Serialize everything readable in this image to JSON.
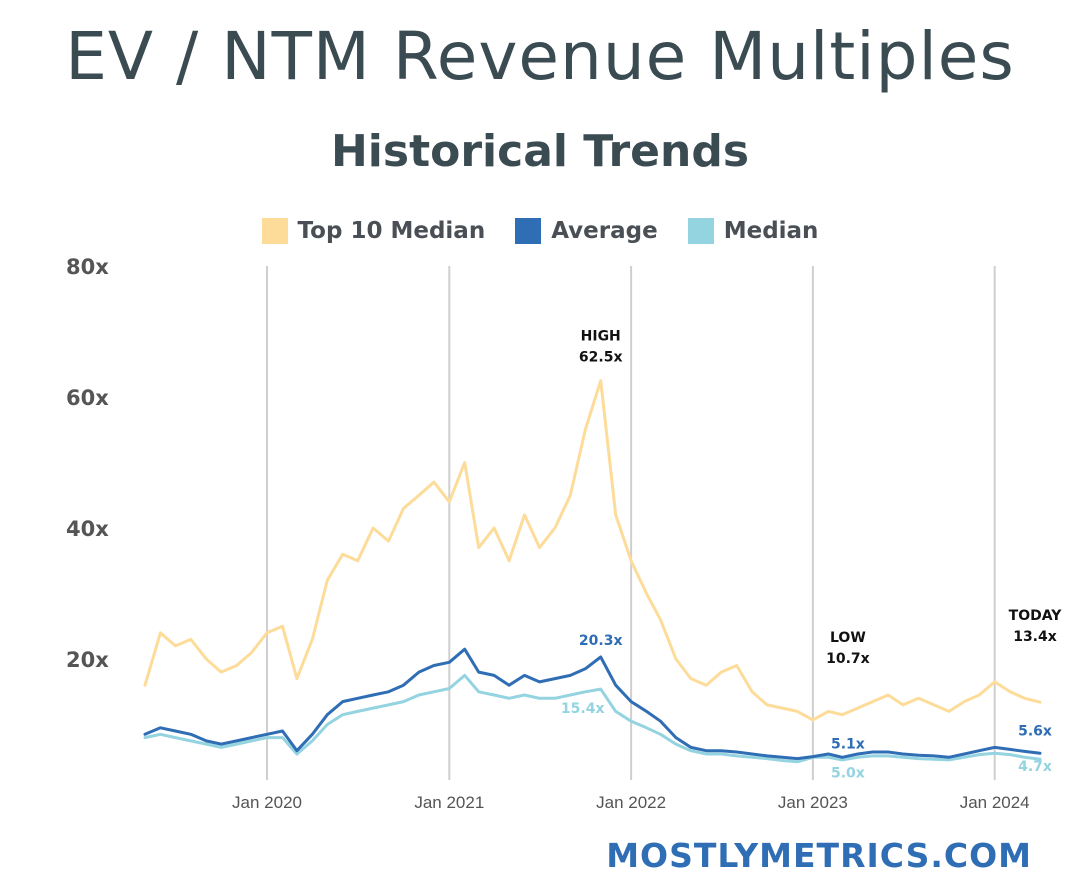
{
  "header": {
    "title": "EV / NTM Revenue Multiples",
    "subtitle": "Historical Trends"
  },
  "legend": [
    {
      "label": "Top 10 Median",
      "color": "#fddc9a"
    },
    {
      "label": "Average",
      "color": "#2f6db4"
    },
    {
      "label": "Median",
      "color": "#94d3e0"
    }
  ],
  "footer": {
    "brand": "MOSTLYMETRICS.COM"
  },
  "chart_data": {
    "type": "line",
    "x_range": [
      "2019-05-01",
      "2024-04-01"
    ],
    "ylim": [
      0,
      80
    ],
    "y_ticks": [
      20,
      40,
      60,
      80
    ],
    "y_tick_labels": [
      "20x",
      "40x",
      "60x",
      "80x"
    ],
    "x_ticks": [
      "2020-01-01",
      "2021-01-01",
      "2022-01-01",
      "2023-01-01",
      "2024-01-01"
    ],
    "x_tick_labels": [
      "Jan 2020",
      "Jan 2021",
      "Jan 2022",
      "Jan 2023",
      "Jan 2024"
    ],
    "grid": "vertical",
    "legend_position": "top",
    "series": [
      {
        "name": "Top 10 Median",
        "color": "#fddc9a",
        "points": [
          [
            "2019-05-01",
            16
          ],
          [
            "2019-06-01",
            24
          ],
          [
            "2019-07-01",
            22
          ],
          [
            "2019-08-01",
            23
          ],
          [
            "2019-09-01",
            20
          ],
          [
            "2019-10-01",
            18
          ],
          [
            "2019-11-01",
            19
          ],
          [
            "2019-12-01",
            21
          ],
          [
            "2020-01-01",
            24
          ],
          [
            "2020-02-01",
            25
          ],
          [
            "2020-03-01",
            17
          ],
          [
            "2020-04-01",
            23
          ],
          [
            "2020-05-01",
            32
          ],
          [
            "2020-06-01",
            36
          ],
          [
            "2020-07-01",
            35
          ],
          [
            "2020-08-01",
            40
          ],
          [
            "2020-09-01",
            38
          ],
          [
            "2020-10-01",
            43
          ],
          [
            "2020-11-01",
            45
          ],
          [
            "2020-12-01",
            47
          ],
          [
            "2021-01-01",
            44
          ],
          [
            "2021-02-01",
            50
          ],
          [
            "2021-03-01",
            37
          ],
          [
            "2021-04-01",
            40
          ],
          [
            "2021-05-01",
            35
          ],
          [
            "2021-06-01",
            42
          ],
          [
            "2021-07-01",
            37
          ],
          [
            "2021-08-01",
            40
          ],
          [
            "2021-09-01",
            45
          ],
          [
            "2021-10-01",
            55
          ],
          [
            "2021-11-01",
            62.5
          ],
          [
            "2021-12-01",
            42
          ],
          [
            "2022-01-01",
            35
          ],
          [
            "2022-02-01",
            30
          ],
          [
            "2022-03-01",
            26
          ],
          [
            "2022-04-01",
            20
          ],
          [
            "2022-05-01",
            17
          ],
          [
            "2022-06-01",
            16
          ],
          [
            "2022-07-01",
            18
          ],
          [
            "2022-08-01",
            19
          ],
          [
            "2022-09-01",
            15
          ],
          [
            "2022-10-01",
            13
          ],
          [
            "2022-11-01",
            12.5
          ],
          [
            "2022-12-01",
            12
          ],
          [
            "2023-01-01",
            10.7
          ],
          [
            "2023-02-01",
            12
          ],
          [
            "2023-03-01",
            11.5
          ],
          [
            "2023-04-01",
            12.5
          ],
          [
            "2023-05-01",
            13.5
          ],
          [
            "2023-06-01",
            14.5
          ],
          [
            "2023-07-01",
            13
          ],
          [
            "2023-08-01",
            14
          ],
          [
            "2023-09-01",
            13
          ],
          [
            "2023-10-01",
            12
          ],
          [
            "2023-11-01",
            13.5
          ],
          [
            "2023-12-01",
            14.5
          ],
          [
            "2024-01-01",
            16.5
          ],
          [
            "2024-02-01",
            15
          ],
          [
            "2024-03-01",
            14
          ],
          [
            "2024-04-01",
            13.4
          ]
        ]
      },
      {
        "name": "Average",
        "color": "#2f6db4",
        "points": [
          [
            "2019-05-01",
            8.5
          ],
          [
            "2019-06-01",
            9.5
          ],
          [
            "2019-07-01",
            9.0
          ],
          [
            "2019-08-01",
            8.5
          ],
          [
            "2019-09-01",
            7.5
          ],
          [
            "2019-10-01",
            7.0
          ],
          [
            "2019-11-01",
            7.5
          ],
          [
            "2019-12-01",
            8.0
          ],
          [
            "2020-01-01",
            8.5
          ],
          [
            "2020-02-01",
            9.0
          ],
          [
            "2020-03-01",
            6.0
          ],
          [
            "2020-04-01",
            8.5
          ],
          [
            "2020-05-01",
            11.5
          ],
          [
            "2020-06-01",
            13.5
          ],
          [
            "2020-07-01",
            14.0
          ],
          [
            "2020-08-01",
            14.5
          ],
          [
            "2020-09-01",
            15.0
          ],
          [
            "2020-10-01",
            16.0
          ],
          [
            "2020-11-01",
            18.0
          ],
          [
            "2020-12-01",
            19.0
          ],
          [
            "2021-01-01",
            19.5
          ],
          [
            "2021-02-01",
            21.5
          ],
          [
            "2021-03-01",
            18.0
          ],
          [
            "2021-04-01",
            17.5
          ],
          [
            "2021-05-01",
            16.0
          ],
          [
            "2021-06-01",
            17.5
          ],
          [
            "2021-07-01",
            16.5
          ],
          [
            "2021-08-01",
            17.0
          ],
          [
            "2021-09-01",
            17.5
          ],
          [
            "2021-10-01",
            18.5
          ],
          [
            "2021-11-01",
            20.3
          ],
          [
            "2021-12-01",
            16.0
          ],
          [
            "2022-01-01",
            13.5
          ],
          [
            "2022-02-01",
            12.0
          ],
          [
            "2022-03-01",
            10.5
          ],
          [
            "2022-04-01",
            8.0
          ],
          [
            "2022-05-01",
            6.5
          ],
          [
            "2022-06-01",
            6.0
          ],
          [
            "2022-07-01",
            6.0
          ],
          [
            "2022-08-01",
            5.8
          ],
          [
            "2022-09-01",
            5.5
          ],
          [
            "2022-10-01",
            5.2
          ],
          [
            "2022-11-01",
            5.0
          ],
          [
            "2022-12-01",
            4.8
          ],
          [
            "2023-01-01",
            5.1
          ],
          [
            "2023-02-01",
            5.5
          ],
          [
            "2023-03-01",
            5.0
          ],
          [
            "2023-04-01",
            5.5
          ],
          [
            "2023-05-01",
            5.8
          ],
          [
            "2023-06-01",
            5.8
          ],
          [
            "2023-07-01",
            5.5
          ],
          [
            "2023-08-01",
            5.3
          ],
          [
            "2023-09-01",
            5.2
          ],
          [
            "2023-10-01",
            5.0
          ],
          [
            "2023-11-01",
            5.5
          ],
          [
            "2023-12-01",
            6.0
          ],
          [
            "2024-01-01",
            6.5
          ],
          [
            "2024-02-01",
            6.2
          ],
          [
            "2024-03-01",
            5.9
          ],
          [
            "2024-04-01",
            5.6
          ]
        ]
      },
      {
        "name": "Median",
        "color": "#94d3e0",
        "points": [
          [
            "2019-05-01",
            8.0
          ],
          [
            "2019-06-01",
            8.5
          ],
          [
            "2019-07-01",
            8.0
          ],
          [
            "2019-08-01",
            7.5
          ],
          [
            "2019-09-01",
            7.0
          ],
          [
            "2019-10-01",
            6.5
          ],
          [
            "2019-11-01",
            7.0
          ],
          [
            "2019-12-01",
            7.5
          ],
          [
            "2020-01-01",
            8.0
          ],
          [
            "2020-02-01",
            8.0
          ],
          [
            "2020-03-01",
            5.5
          ],
          [
            "2020-04-01",
            7.5
          ],
          [
            "2020-05-01",
            10.0
          ],
          [
            "2020-06-01",
            11.5
          ],
          [
            "2020-07-01",
            12.0
          ],
          [
            "2020-08-01",
            12.5
          ],
          [
            "2020-09-01",
            13.0
          ],
          [
            "2020-10-01",
            13.5
          ],
          [
            "2020-11-01",
            14.5
          ],
          [
            "2020-12-01",
            15.0
          ],
          [
            "2021-01-01",
            15.5
          ],
          [
            "2021-02-01",
            17.5
          ],
          [
            "2021-03-01",
            15.0
          ],
          [
            "2021-04-01",
            14.5
          ],
          [
            "2021-05-01",
            14.0
          ],
          [
            "2021-06-01",
            14.5
          ],
          [
            "2021-07-01",
            14.0
          ],
          [
            "2021-08-01",
            14.0
          ],
          [
            "2021-09-01",
            14.5
          ],
          [
            "2021-10-01",
            15.0
          ],
          [
            "2021-11-01",
            15.4
          ],
          [
            "2021-12-01",
            12.0
          ],
          [
            "2022-01-01",
            10.5
          ],
          [
            "2022-02-01",
            9.5
          ],
          [
            "2022-03-01",
            8.5
          ],
          [
            "2022-04-01",
            7.0
          ],
          [
            "2022-05-01",
            6.0
          ],
          [
            "2022-06-01",
            5.5
          ],
          [
            "2022-07-01",
            5.5
          ],
          [
            "2022-08-01",
            5.2
          ],
          [
            "2022-09-01",
            5.0
          ],
          [
            "2022-10-01",
            4.8
          ],
          [
            "2022-11-01",
            4.5
          ],
          [
            "2022-12-01",
            4.3
          ],
          [
            "2023-01-01",
            5.0
          ],
          [
            "2023-02-01",
            5.0
          ],
          [
            "2023-03-01",
            4.6
          ],
          [
            "2023-04-01",
            5.0
          ],
          [
            "2023-05-01",
            5.2
          ],
          [
            "2023-06-01",
            5.2
          ],
          [
            "2023-07-01",
            5.0
          ],
          [
            "2023-08-01",
            4.8
          ],
          [
            "2023-09-01",
            4.7
          ],
          [
            "2023-10-01",
            4.6
          ],
          [
            "2023-11-01",
            5.0
          ],
          [
            "2023-12-01",
            5.4
          ],
          [
            "2024-01-01",
            5.6
          ],
          [
            "2024-02-01",
            5.4
          ],
          [
            "2024-03-01",
            5.0
          ],
          [
            "2024-04-01",
            4.7
          ]
        ]
      }
    ],
    "annotations": [
      {
        "lines": [
          "HIGH",
          "62.5x"
        ],
        "x": "2021-11-01",
        "y": 62.5,
        "color": "#111111"
      },
      {
        "lines": [
          "20.3x"
        ],
        "x": "2021-11-01",
        "y": 20.3,
        "color": "#2f6db4"
      },
      {
        "lines": [
          "15.4x"
        ],
        "x": "2021-11-01",
        "y": 15.4,
        "color": "#94d3e0"
      },
      {
        "lines": [
          "LOW",
          "10.7x"
        ],
        "x": "2023-01-01",
        "y": 10.7,
        "color": "#111111"
      },
      {
        "lines": [
          "5.1x"
        ],
        "x": "2023-01-01",
        "y": 5.1,
        "color": "#2f6db4"
      },
      {
        "lines": [
          "5.0x"
        ],
        "x": "2023-01-01",
        "y": 5.0,
        "color": "#94d3e0"
      },
      {
        "lines": [
          "TODAY",
          "13.4x"
        ],
        "x": "2024-04-01",
        "y": 13.4,
        "color": "#111111"
      },
      {
        "lines": [
          "5.6x"
        ],
        "x": "2024-04-01",
        "y": 5.6,
        "color": "#2f6db4"
      },
      {
        "lines": [
          "4.7x"
        ],
        "x": "2024-04-01",
        "y": 4.7,
        "color": "#94d3e0"
      }
    ]
  }
}
